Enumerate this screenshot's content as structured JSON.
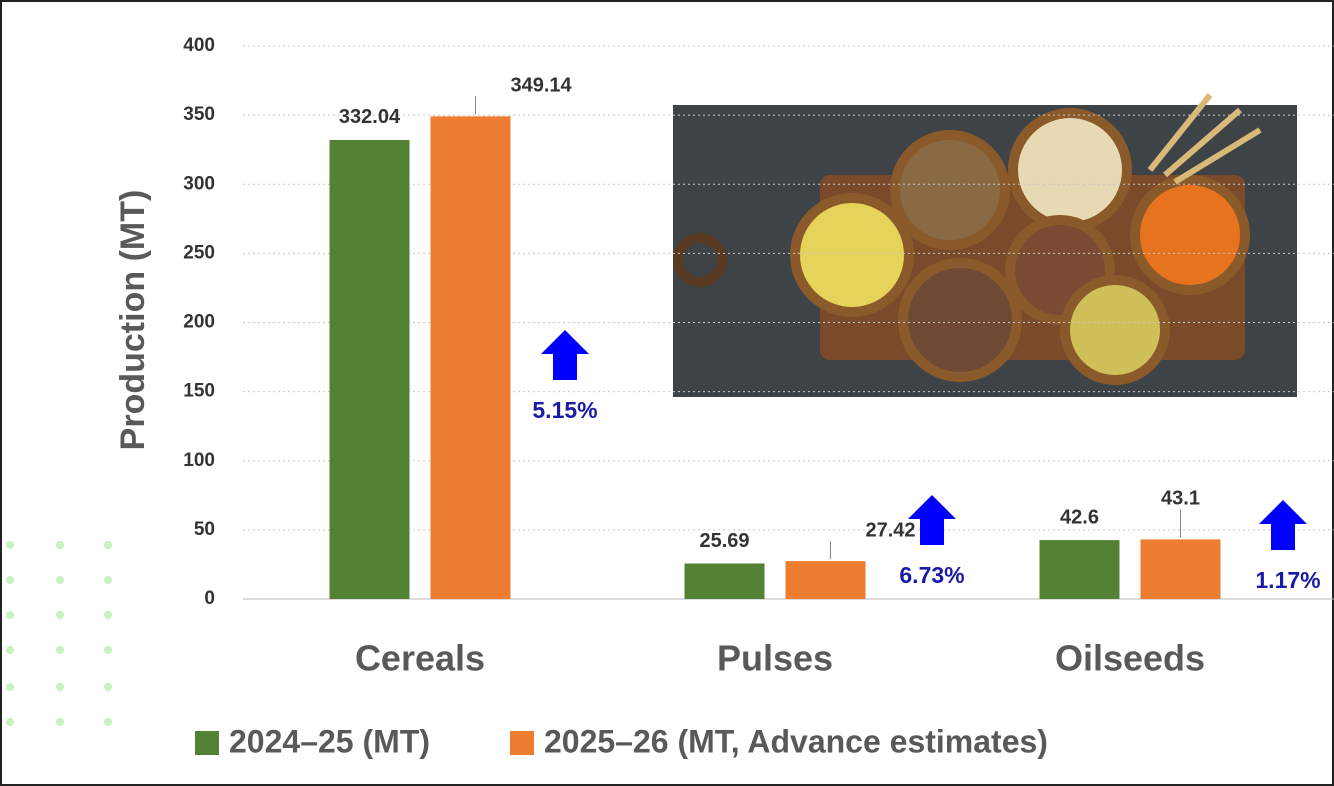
{
  "chart_data": {
    "type": "bar",
    "y_label": "Production (MT)",
    "categories": [
      "Cereals",
      "Pulses",
      "Oilseeds"
    ],
    "series": [
      {
        "name": "2024–25 (MT)",
        "color": "#548235",
        "values": [
          332.04,
          25.69,
          42.6
        ]
      },
      {
        "name": "2025–26 (MT, Advance estimates)",
        "color": "#ed7d31",
        "values": [
          349.14,
          27.42,
          43.1
        ]
      }
    ],
    "annotations": [
      "5.15%",
      "6.73%",
      "1.17%"
    ],
    "ylim": [
      0,
      400
    ],
    "yticks": [
      0,
      50,
      100,
      150,
      200,
      250,
      300,
      350,
      400
    ],
    "grid": true
  }
}
